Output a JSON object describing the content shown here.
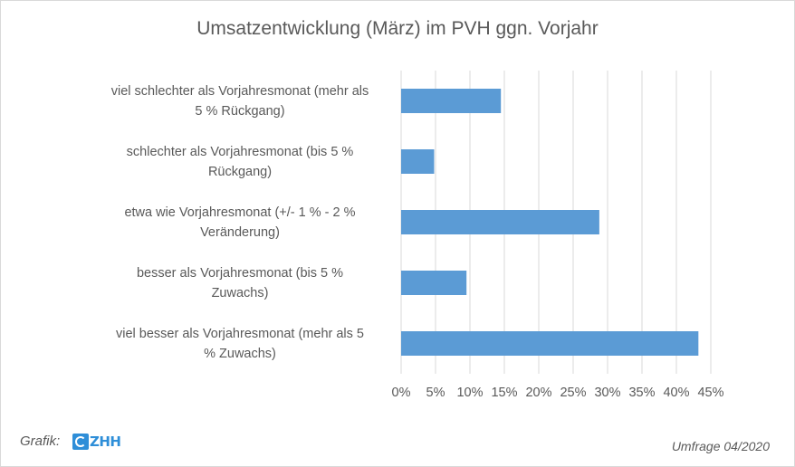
{
  "chart_data": {
    "type": "bar",
    "orientation": "horizontal",
    "title": "Umsatzentwicklung (März) im PVH ggn. Vorjahr",
    "categories": [
      [
        "viel schlechter als Vorjahresmonat (mehr als",
        "5 % Rückgang)"
      ],
      [
        "schlechter als Vorjahresmonat (bis 5 %",
        "Rückgang)"
      ],
      [
        "etwa wie Vorjahresmonat (+/- 1 % - 2 %",
        "Veränderung)"
      ],
      [
        "besser als Vorjahresmonat (bis 5 %",
        "Zuwachs)"
      ],
      [
        "viel besser als Vorjahresmonat (mehr als 5",
        "% Zuwachs)"
      ]
    ],
    "values": [
      14.5,
      4.8,
      28.8,
      9.5,
      43.2
    ],
    "value_unit": "%",
    "xlim": [
      0,
      45
    ],
    "xticks": [
      "0%",
      "5%",
      "10%",
      "15%",
      "20%",
      "25%",
      "30%",
      "35%",
      "40%",
      "45%"
    ],
    "xtick_values": [
      0,
      5,
      10,
      15,
      20,
      25,
      30,
      35,
      40,
      45
    ],
    "grid": "vertical",
    "bar_color": "#5b9bd5",
    "grid_color": "#d9d9d9"
  },
  "footer": {
    "credit_label": "Grafik:",
    "logo_text": "ZHH",
    "survey_note": "Umfrage 04/2020"
  }
}
